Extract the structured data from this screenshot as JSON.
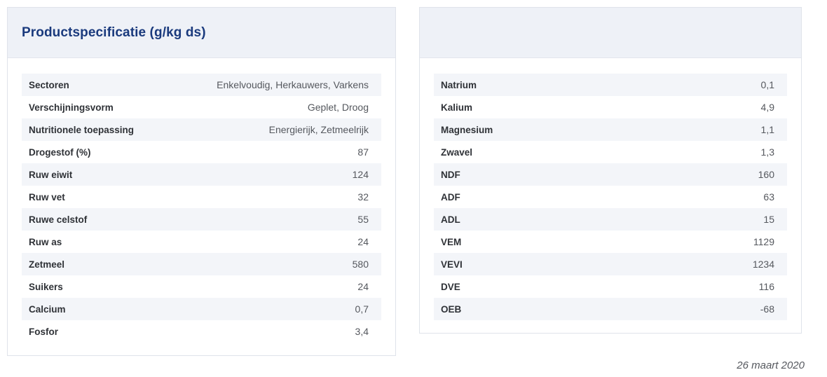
{
  "colors": {
    "title_blue": "#1a3a7d",
    "card_border": "#dfe3ea",
    "header_background": "#eef1f7",
    "row_stripe": "#f3f5f9",
    "label_text": "#2f3237",
    "value_text": "#55585e"
  },
  "left_panel": {
    "title": "Productspecificatie (g/kg ds)",
    "rows": [
      {
        "label": "Sectoren",
        "value": "Enkelvoudig, Herkauwers, Varkens"
      },
      {
        "label": "Verschijningsvorm",
        "value": "Geplet, Droog"
      },
      {
        "label": "Nutritionele toepassing",
        "value": "Energierijk, Zetmeelrijk"
      },
      {
        "label": "Drogestof (%)",
        "value": "87"
      },
      {
        "label": "Ruw eiwit",
        "value": "124"
      },
      {
        "label": "Ruw vet",
        "value": "32"
      },
      {
        "label": "Ruwe celstof",
        "value": "55"
      },
      {
        "label": "Ruw as",
        "value": "24"
      },
      {
        "label": "Zetmeel",
        "value": "580"
      },
      {
        "label": "Suikers",
        "value": "24"
      },
      {
        "label": "Calcium",
        "value": "0,7"
      },
      {
        "label": "Fosfor",
        "value": "3,4"
      }
    ]
  },
  "right_panel": {
    "title": "",
    "rows": [
      {
        "label": "Natrium",
        "value": "0,1"
      },
      {
        "label": "Kalium",
        "value": "4,9"
      },
      {
        "label": "Magnesium",
        "value": "1,1"
      },
      {
        "label": "Zwavel",
        "value": "1,3"
      },
      {
        "label": "NDF",
        "value": "160"
      },
      {
        "label": "ADF",
        "value": "63"
      },
      {
        "label": "ADL",
        "value": "15"
      },
      {
        "label": "VEM",
        "value": "1129"
      },
      {
        "label": "VEVI",
        "value": "1234"
      },
      {
        "label": "DVE",
        "value": "116"
      },
      {
        "label": "OEB",
        "value": "-68"
      }
    ]
  },
  "footer": {
    "date_note": "26 maart 2020"
  }
}
